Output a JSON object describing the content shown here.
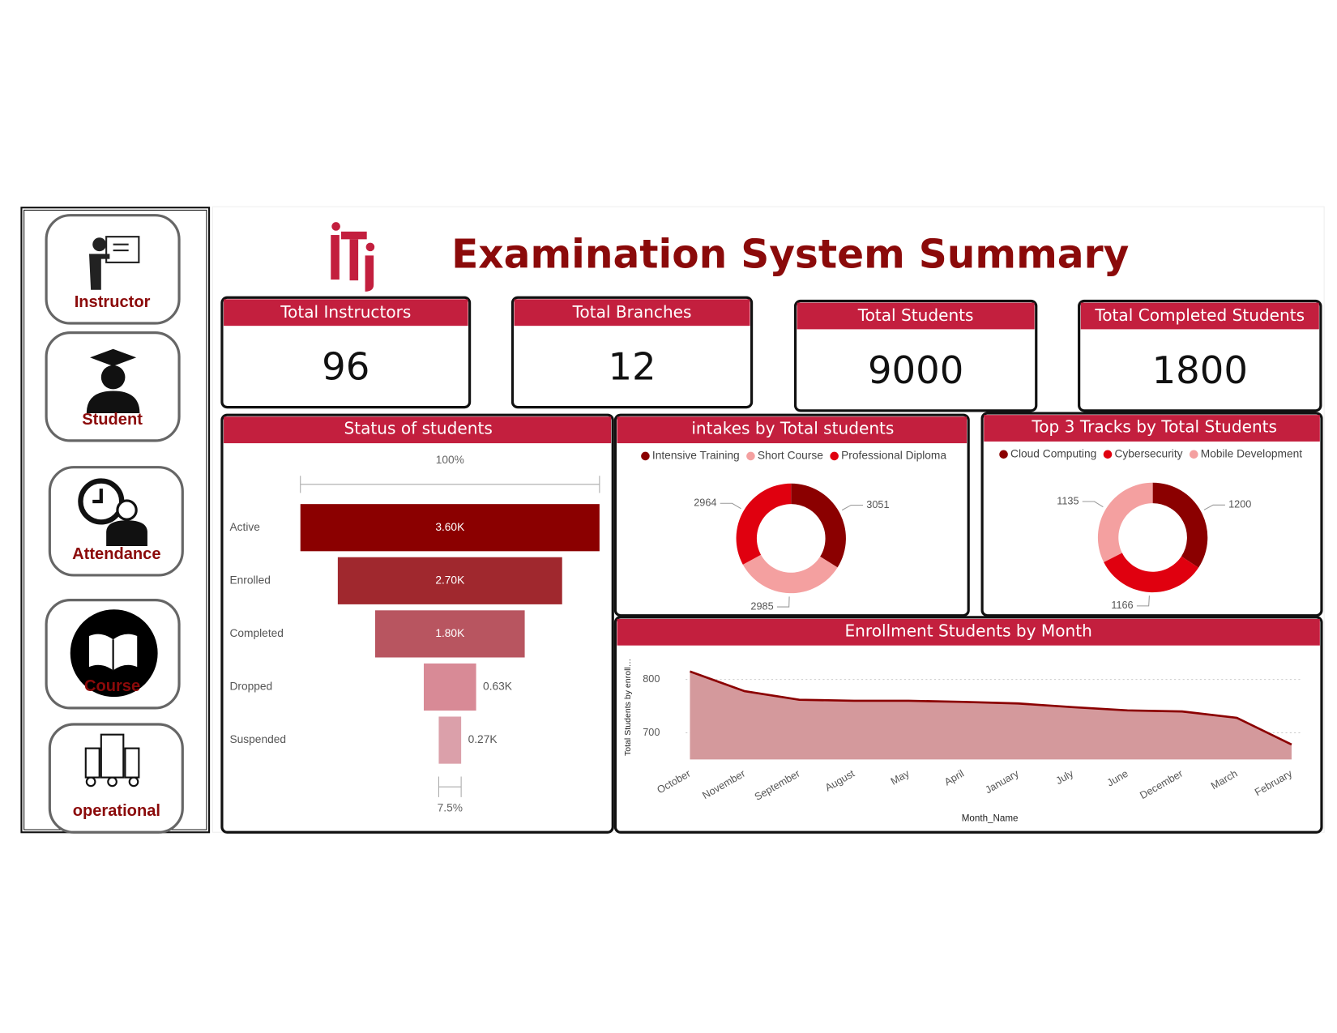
{
  "title": "Examination System Summary",
  "nav": [
    "Instructor",
    "Student",
    "Attendance",
    "Course",
    "operational"
  ],
  "cards": [
    {
      "label": "Total Instructors",
      "value": 96
    },
    {
      "label": "Total Branches",
      "value": 12
    },
    {
      "label": "Total Students",
      "value": 9000
    },
    {
      "label": "Total Completed Students",
      "value": 1800
    }
  ],
  "chart_data": [
    {
      "type": "funnel",
      "title": "Status of students",
      "categories": [
        "Active",
        "Enrolled",
        "Completed",
        "Dropped",
        "Suspended"
      ],
      "values": [
        3600,
        2700,
        1800,
        630,
        270
      ],
      "value_labels": [
        "3.60K",
        "2.70K",
        "1.80K",
        "0.63K",
        "0.27K"
      ],
      "colors": [
        "#8b0000",
        "#a0282e",
        "#b85560",
        "#d88a96",
        "#dba0aa"
      ],
      "first_stage_percent": "100%",
      "last_stage_percent": "7.5%"
    },
    {
      "type": "donut",
      "title": "intakes by Total students",
      "categories": [
        "Intensive Training",
        "Short Course",
        "Professional Diploma"
      ],
      "values": [
        3051,
        2985,
        2964
      ],
      "colors": [
        "#8b0000",
        "#f4a0a0",
        "#e0000f"
      ]
    },
    {
      "type": "donut",
      "title": "Top 3 Tracks by Total Students",
      "categories": [
        "Cloud Computing",
        "Cybersecurity",
        "Mobile Development"
      ],
      "values": [
        1200,
        1166,
        1135
      ],
      "colors": [
        "#8b0000",
        "#e0000f",
        "#f4a0a0"
      ]
    },
    {
      "type": "area",
      "title": "Enrollment Students by Month",
      "x_label": "Month_Name",
      "y_label": "Total Students by enroll…",
      "categories": [
        "October",
        "November",
        "September",
        "August",
        "May",
        "April",
        "January",
        "July",
        "June",
        "December",
        "March",
        "February"
      ],
      "values": [
        815,
        778,
        762,
        760,
        760,
        758,
        755,
        748,
        742,
        740,
        728,
        678
      ],
      "ylim": [
        650,
        830
      ],
      "yticks": [
        700,
        800
      ],
      "grid": true,
      "line_color": "#8b0000",
      "fill_color": "#d4999c"
    }
  ]
}
